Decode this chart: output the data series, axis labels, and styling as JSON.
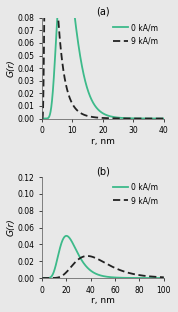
{
  "panel_a": {
    "title": "(a)",
    "ylabel": "G(r)",
    "xlabel": "r, nm",
    "xlim": [
      0,
      40
    ],
    "ylim": [
      0,
      0.08
    ],
    "yticks": [
      0,
      0.01,
      0.02,
      0.03,
      0.04,
      0.05,
      0.06,
      0.07,
      0.08
    ],
    "xticks": [
      0,
      10,
      20,
      30,
      40
    ],
    "green_curve": {
      "label": "0 kA/m",
      "mu": 8.5,
      "sigma": 0.38,
      "color": "#3dba8a",
      "lw": 1.3
    },
    "dashed_curve": {
      "label": "9 kA/m",
      "mu": 3.05,
      "sigma": 0.65,
      "color": "#222222",
      "lw": 1.3,
      "linestyle": "--"
    }
  },
  "panel_b": {
    "title": "(b)",
    "ylabel": "G(r)",
    "xlabel": "r, nm",
    "xlim": [
      0,
      100
    ],
    "ylim": [
      0,
      0.12
    ],
    "yticks": [
      0,
      0.02,
      0.04,
      0.06,
      0.08,
      0.1,
      0.12
    ],
    "xticks": [
      0,
      20,
      40,
      60,
      80,
      100
    ],
    "green_curve": {
      "label": "0 kA/m",
      "mu": 23,
      "sigma": 0.37,
      "color": "#3dba8a",
      "lw": 1.3
    },
    "dashed_curve": {
      "label": "9 kA/m",
      "mu": 43,
      "sigma": 0.38,
      "color": "#222222",
      "lw": 1.3,
      "linestyle": "--"
    }
  },
  "background_color": "#e8e8e8",
  "legend_fontsize": 5.5,
  "label_fontsize": 6.5,
  "tick_fontsize": 5.5,
  "title_fontsize": 7
}
